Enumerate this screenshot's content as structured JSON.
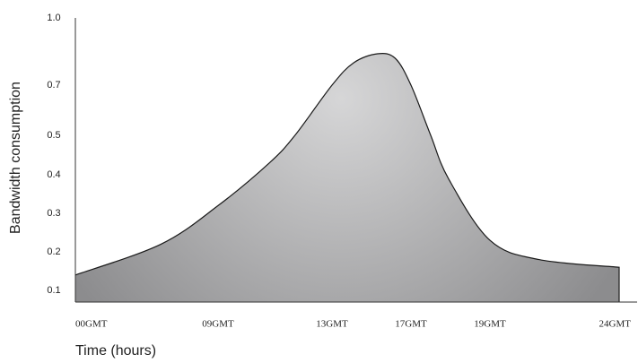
{
  "chart_data": {
    "type": "area",
    "y_label": "Bandwidth consumption",
    "x_label": "Time (hours)",
    "x": [
      0,
      5.4,
      9,
      10.8,
      11.7,
      13,
      14.1,
      15.3,
      16.2,
      17,
      17.5,
      17.95,
      19,
      20.9,
      24
    ],
    "values": [
      0.14,
      0.22,
      0.32,
      0.43,
      0.5,
      0.7,
      0.8,
      0.84,
      0.82,
      0.7,
      0.5,
      0.39,
      0.23,
      0.18,
      0.16
    ],
    "xlim": [
      0,
      24
    ],
    "xticks": [
      {
        "value": 0,
        "label": "00GMT"
      },
      {
        "value": 9,
        "label": "09GMT"
      },
      {
        "value": 13,
        "label": "13GMT"
      },
      {
        "value": 17,
        "label": "17GMT"
      },
      {
        "value": 19,
        "label": "19GMT"
      },
      {
        "value": 24,
        "label": "24GMT"
      }
    ],
    "ylim": [
      0.07,
      1.0
    ],
    "yticks": [
      0.1,
      0.2,
      0.3,
      0.4,
      0.5,
      0.7,
      {
        "value": 1,
        "label": "1.0"
      }
    ]
  }
}
